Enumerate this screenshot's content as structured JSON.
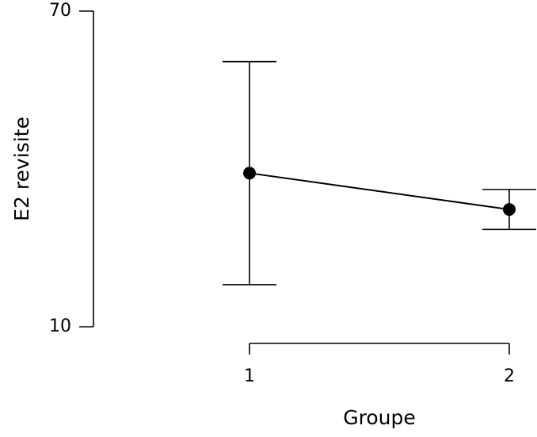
{
  "chart_data": {
    "type": "line",
    "categories": [
      "1",
      "2"
    ],
    "values": [
      39.2,
      32.3
    ],
    "errors": [
      21.2,
      3.8
    ],
    "xlabel": "Groupe",
    "ylabel": "E2 revisite",
    "ylim": [
      10,
      70
    ],
    "yticks": [
      10,
      70
    ],
    "color": "#000000"
  }
}
